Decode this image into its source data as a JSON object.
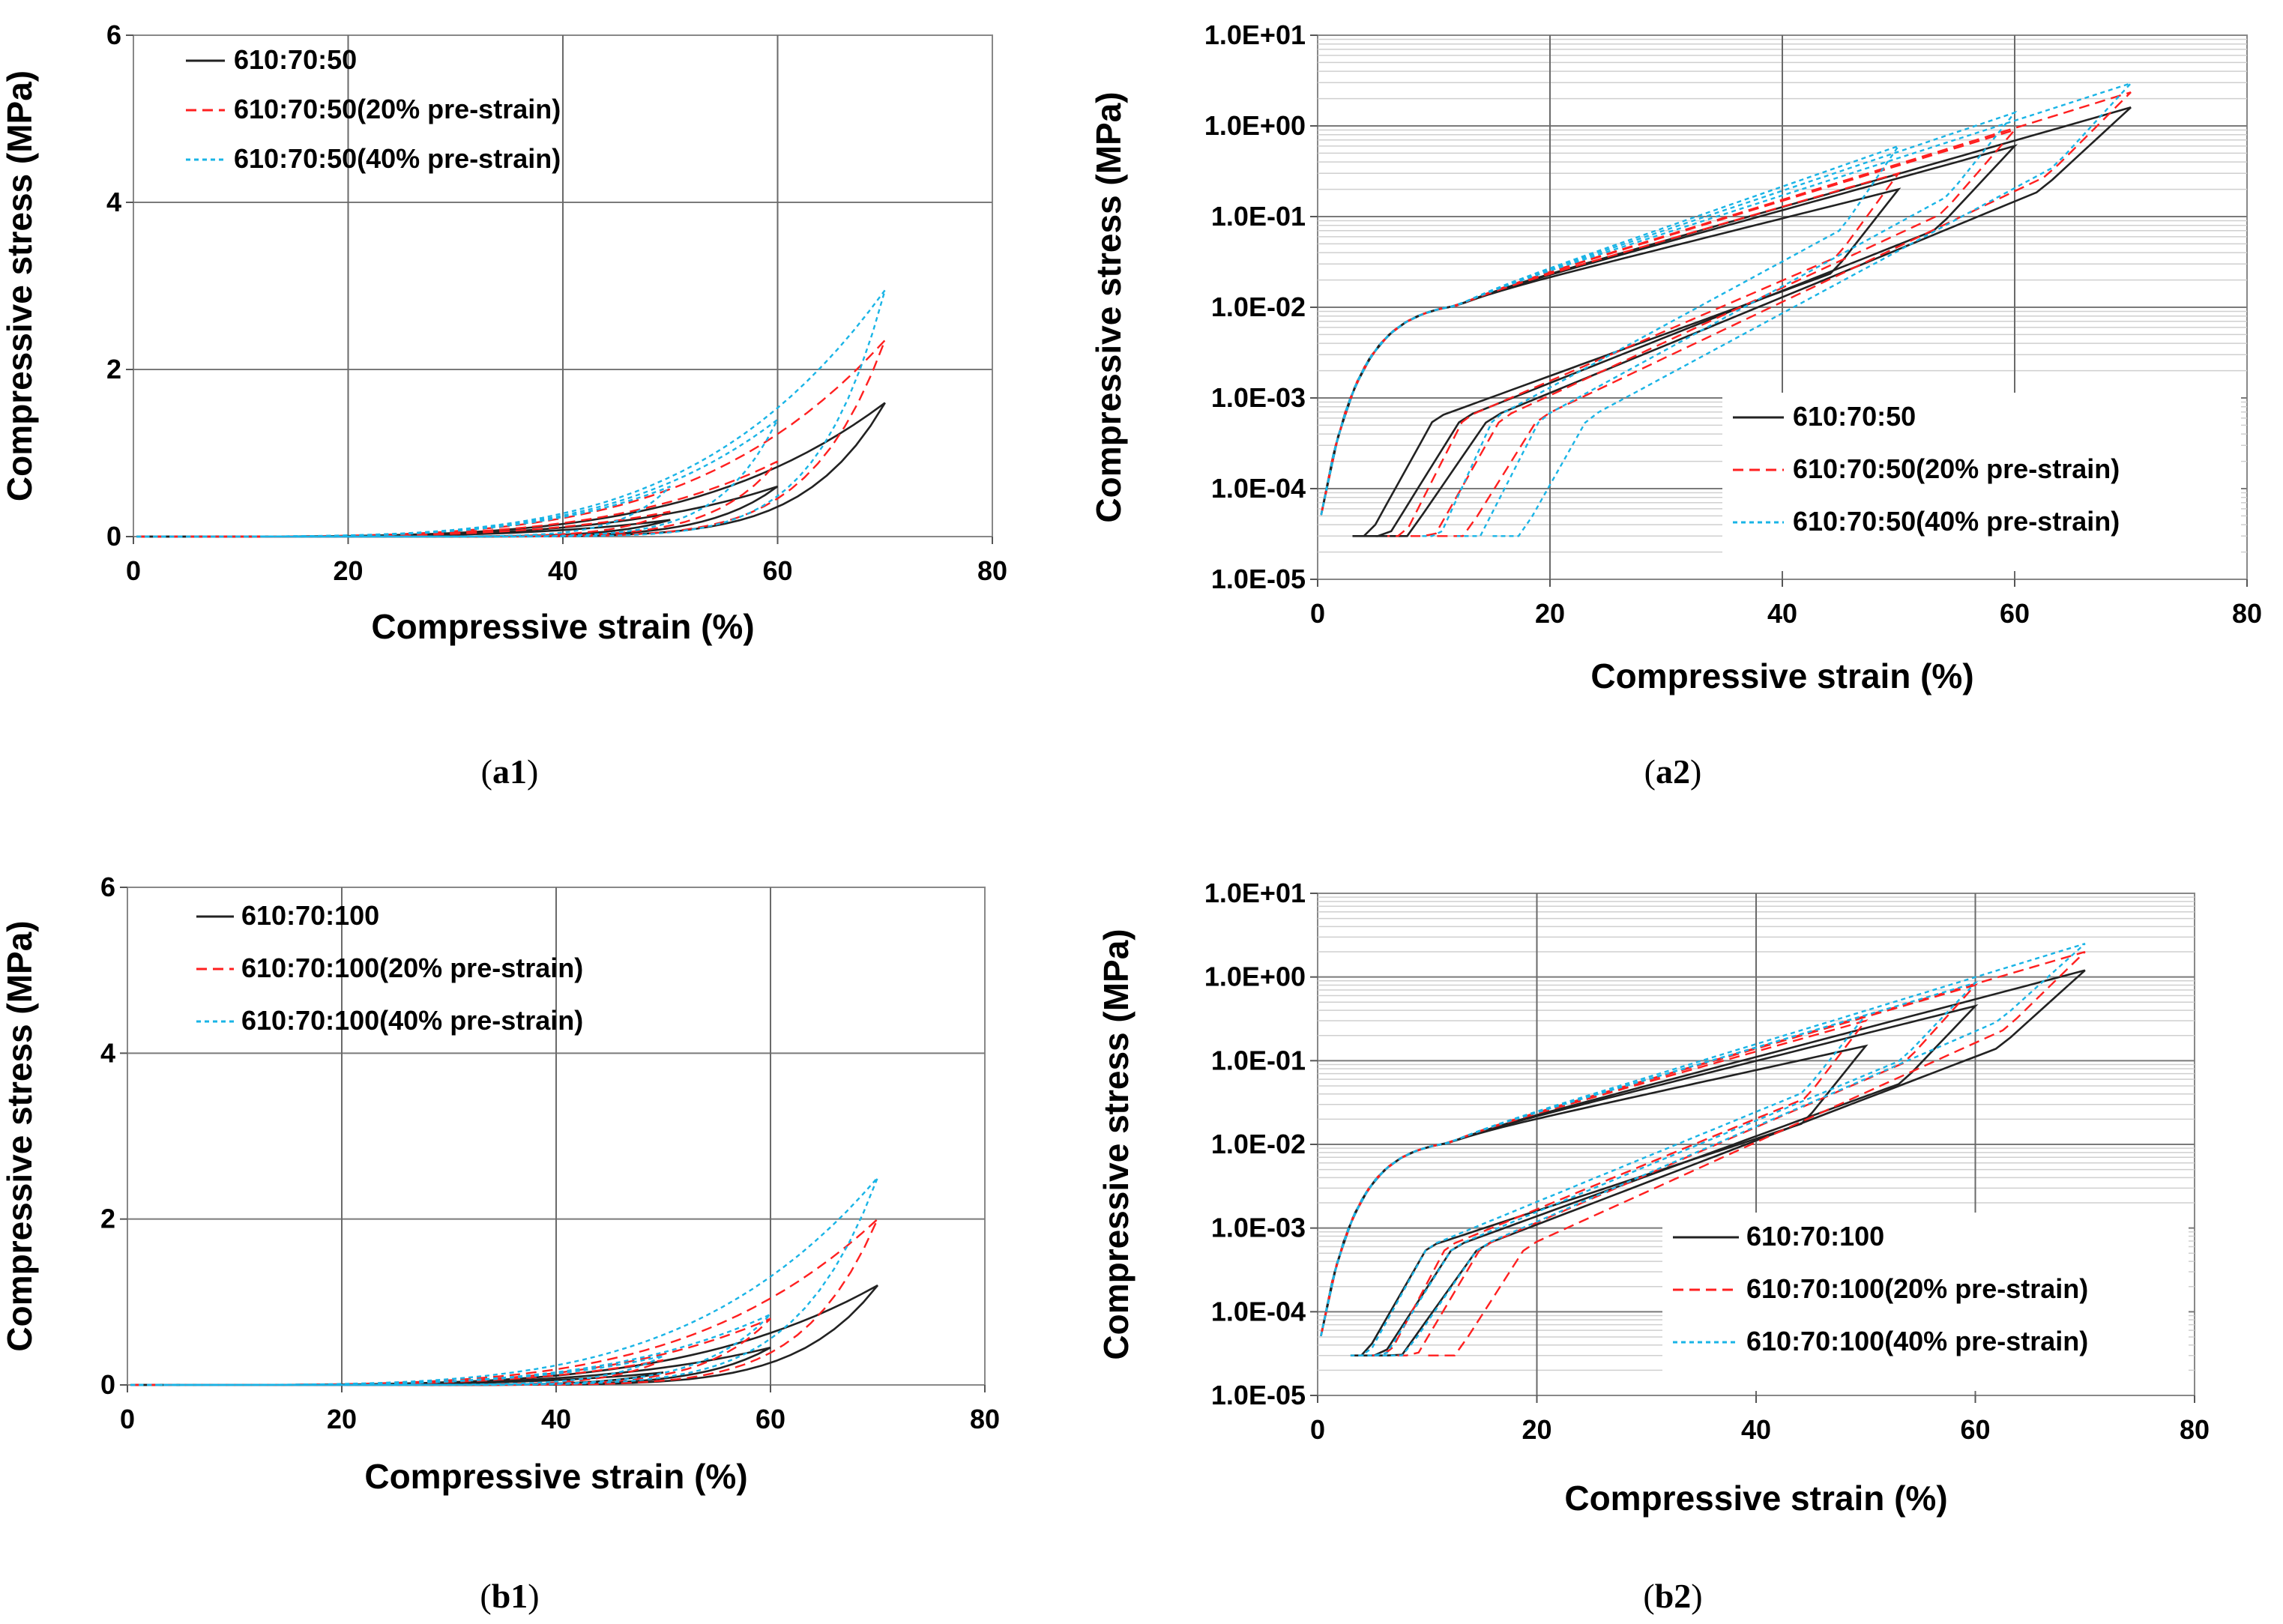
{
  "chart_data": [
    {
      "id": "a1",
      "type": "line",
      "caption": "a1",
      "xlabel": "Compressive strain (%)",
      "ylabel": "Compressive stress  (MPa)",
      "xlim": [
        0,
        80
      ],
      "ylim": [
        0,
        6
      ],
      "yscale": "linear",
      "xticks": [
        "0",
        "20",
        "40",
        "60",
        "80"
      ],
      "yticks": [
        "0",
        "2",
        "4",
        "6"
      ],
      "legend_position": "top-left",
      "series": [
        {
          "name": "610:70:50",
          "color": "#222222",
          "dash": "solid",
          "endpoints": [
            50,
            60,
            70
          ],
          "peaks": [
            0.2,
            0.6,
            1.6
          ],
          "residuals": [
            3,
            4,
            5
          ]
        },
        {
          "name": "610:70:50(20% pre-strain)",
          "color": "#ff1f1f",
          "dash": "dashed",
          "endpoints": [
            50,
            60,
            70
          ],
          "peaks": [
            0.3,
            0.9,
            2.35
          ],
          "residuals": [
            6,
            8,
            10
          ]
        },
        {
          "name": "610:70:50(40% pre-strain)",
          "color": "#19b4e6",
          "dash": "dotted",
          "endpoints": [
            50,
            60,
            70
          ],
          "peaks": [
            0.6,
            1.4,
            2.95
          ],
          "residuals": [
            9,
            12,
            15
          ]
        }
      ]
    },
    {
      "id": "a2",
      "type": "line",
      "caption": "a2",
      "xlabel": "Compressive strain (%)",
      "ylabel": "Compressive stress  (MPa)",
      "xlim": [
        0,
        80
      ],
      "ylim": [
        1e-05,
        10
      ],
      "yscale": "log",
      "xticks": [
        "0",
        "20",
        "40",
        "60",
        "80"
      ],
      "yticks": [
        "1.0E-05",
        "1.0E-04",
        "1.0E-03",
        "1.0E-02",
        "1.0E-01",
        "1.0E+00",
        "1.0E+01"
      ],
      "legend_position": "bottom-right",
      "series": [
        {
          "name": "610:70:50",
          "color": "#222222",
          "dash": "solid",
          "endpoints": [
            50,
            60,
            70
          ],
          "peaks": [
            0.2,
            0.6,
            1.6
          ],
          "residuals": [
            3,
            4,
            5
          ]
        },
        {
          "name": "610:70:50(20% pre-strain)",
          "color": "#ff1f1f",
          "dash": "dashed",
          "endpoints": [
            50,
            60,
            70
          ],
          "peaks": [
            0.3,
            0.9,
            2.35
          ],
          "residuals": [
            6,
            8,
            10
          ]
        },
        {
          "name": "610:70:50(40% pre-strain)",
          "color": "#19b4e6",
          "dash": "dotted",
          "endpoints": [
            50,
            60,
            70
          ],
          "peaks": [
            0.6,
            1.4,
            2.95
          ],
          "residuals": [
            9,
            12,
            15
          ]
        }
      ]
    },
    {
      "id": "b1",
      "type": "line",
      "caption": "b1",
      "xlabel": "Compressive strain (%)",
      "ylabel": "Compressive stress  (MPa)",
      "xlim": [
        0,
        80
      ],
      "ylim": [
        0,
        6
      ],
      "yscale": "linear",
      "xticks": [
        "0",
        "20",
        "40",
        "60",
        "80"
      ],
      "yticks": [
        "0",
        "2",
        "4",
        "6"
      ],
      "legend_position": "top-left",
      "series": [
        {
          "name": "610:70:100",
          "color": "#222222",
          "dash": "solid",
          "endpoints": [
            50,
            60,
            70
          ],
          "peaks": [
            0.15,
            0.45,
            1.2
          ],
          "residuals": [
            3,
            4,
            5
          ]
        },
        {
          "name": "610:70:100(20% pre-strain)",
          "color": "#ff1f1f",
          "dash": "dashed",
          "endpoints": [
            50,
            60,
            70
          ],
          "peaks": [
            0.3,
            0.8,
            2.0
          ],
          "residuals": [
            5,
            7,
            10
          ]
        },
        {
          "name": "610:70:100(40% pre-strain)",
          "color": "#19b4e6",
          "dash": "dotted",
          "endpoints": [
            50,
            60,
            70
          ],
          "peaks": [
            0.35,
            0.85,
            2.5
          ],
          "residuals": [
            3,
            4,
            5
          ]
        }
      ]
    },
    {
      "id": "b2",
      "type": "line",
      "caption": "b2",
      "xlabel": "Compressive strain (%)",
      "ylabel": "Compressive stress  (MPa)",
      "xlim": [
        0,
        80
      ],
      "ylim": [
        1e-05,
        10
      ],
      "yscale": "log",
      "xticks": [
        "0",
        "20",
        "40",
        "60",
        "80"
      ],
      "yticks": [
        "1.0E-05",
        "1.0E-04",
        "1.0E-03",
        "1.0E-02",
        "1.0E-01",
        "1.0E+00",
        "1.0E+01"
      ],
      "legend_position": "bottom-right",
      "series": [
        {
          "name": "610:70:100",
          "color": "#222222",
          "dash": "solid",
          "endpoints": [
            50,
            60,
            70
          ],
          "peaks": [
            0.15,
            0.45,
            1.2
          ],
          "residuals": [
            3,
            4,
            5
          ]
        },
        {
          "name": "610:70:100(20% pre-strain)",
          "color": "#ff1f1f",
          "dash": "dashed",
          "endpoints": [
            50,
            60,
            70
          ],
          "peaks": [
            0.3,
            0.8,
            2.0
          ],
          "residuals": [
            5,
            7,
            10
          ]
        },
        {
          "name": "610:70:100(40% pre-strain)",
          "color": "#19b4e6",
          "dash": "dotted",
          "endpoints": [
            50,
            60,
            70
          ],
          "peaks": [
            0.35,
            0.85,
            2.5
          ],
          "residuals": [
            3,
            4,
            5
          ]
        }
      ]
    }
  ]
}
